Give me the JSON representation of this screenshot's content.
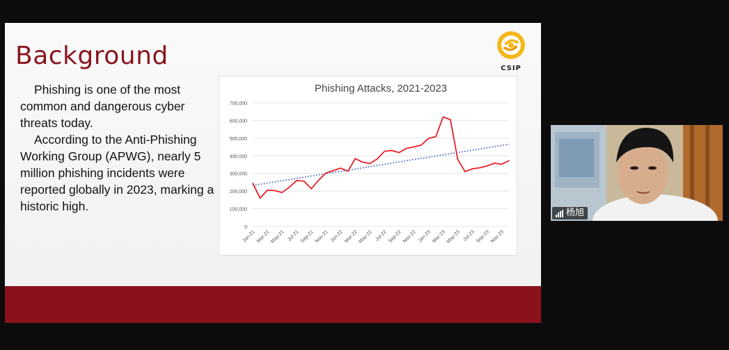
{
  "slide": {
    "title": "Background",
    "logo_text": "CSIP",
    "paragraphs": [
      "Phishing is one of the most common and dangerous cyber threats today.",
      "According to the Anti-Phishing Working Group (APWG), nearly 5 million phishing incidents were reported globally in 2023, marking a historic high."
    ],
    "colors": {
      "title": "#8b1520",
      "footer": "#8b111c",
      "series_line": "#e8202a",
      "trend_line": "#3a5fc8"
    }
  },
  "chart_data": {
    "type": "line",
    "title": "Phishing Attacks, 2021-2023",
    "x": [
      "Jan-21",
      "Feb-21",
      "Mar-21",
      "Apr-21",
      "May-21",
      "Jun-21",
      "Jul-21",
      "Aug-21",
      "Sep-21",
      "Oct-21",
      "Nov-21",
      "Dec-21",
      "Jan-22",
      "Feb-22",
      "Mar-22",
      "Apr-22",
      "May-22",
      "Jun-22",
      "Jul-22",
      "Aug-22",
      "Sep-22",
      "Oct-22",
      "Nov-22",
      "Dec-22",
      "Jan-23",
      "Feb-23",
      "Mar-23",
      "Apr-23",
      "May-23",
      "Jun-23",
      "Jul-23",
      "Aug-23",
      "Sep-23",
      "Oct-23",
      "Nov-23",
      "Dec-23"
    ],
    "x_tick_labels": [
      "Jan-21",
      "Mar-21",
      "May-21",
      "Jul-21",
      "Sep-21",
      "Nov-21",
      "Jan-22",
      "Mar-22",
      "May-22",
      "Jul-22",
      "Sep-22",
      "Nov-22",
      "Jan-23",
      "Mar-23",
      "May-23",
      "Jul-23",
      "Sep-23",
      "Nov-23"
    ],
    "series": [
      {
        "values": [
          245000,
          160000,
          205000,
          203000,
          192000,
          222000,
          260000,
          256000,
          213000,
          262000,
          302000,
          316000,
          330000,
          312000,
          384000,
          364000,
          356000,
          382000,
          425000,
          430000,
          418000,
          442000,
          450000,
          460000,
          498000,
          508000,
          620000,
          604000,
          380000,
          310000,
          326000,
          332000,
          342000,
          358000,
          352000,
          372000
        ]
      }
    ],
    "trendline": {
      "start": 232000,
      "end": 465000,
      "style": "dotted"
    },
    "ylim": [
      0,
      700000
    ],
    "y_ticks": [
      "0",
      "100,000",
      "200,000",
      "300,000",
      "400,000",
      "500,000",
      "600,000",
      "700,000"
    ],
    "grid": true,
    "legend": "none"
  },
  "participant": {
    "name": "杨旭",
    "mic_icon": "signal-bars-icon"
  }
}
